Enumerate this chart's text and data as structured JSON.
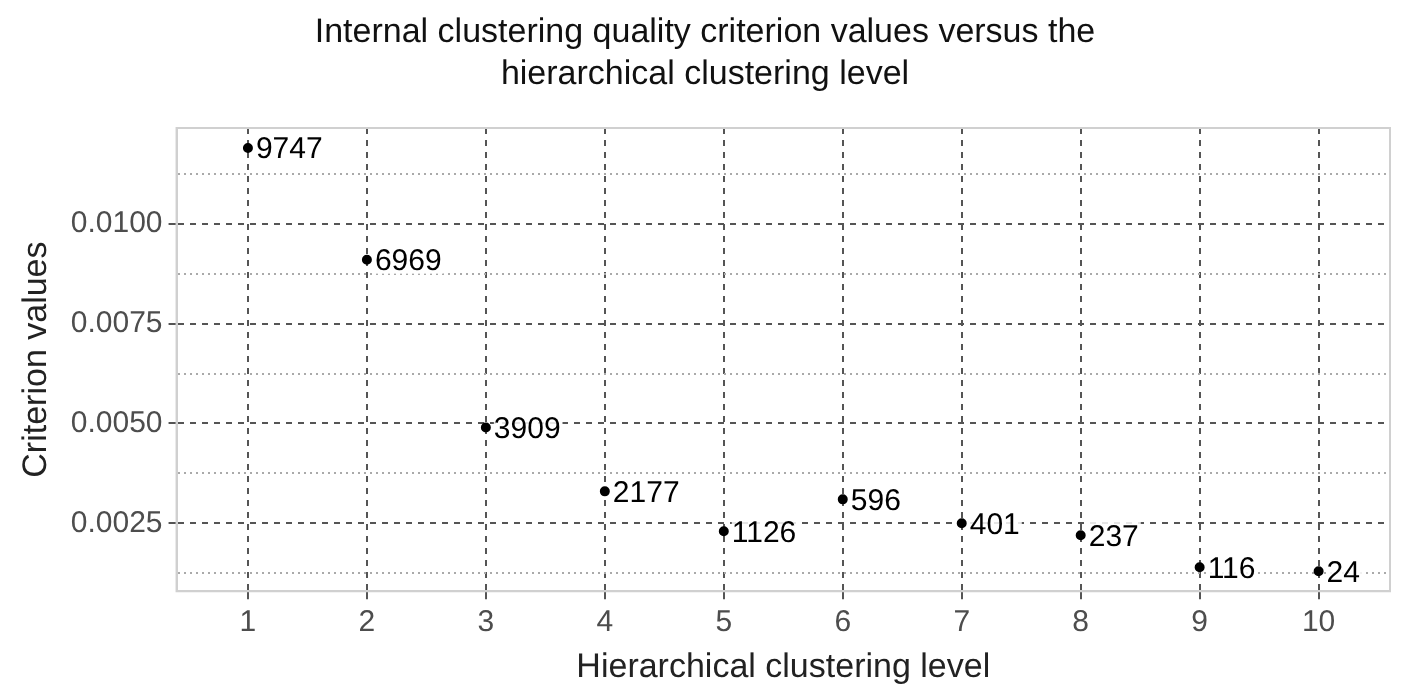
{
  "chart_data": {
    "type": "scatter",
    "title": "Internal clustering quality criterion values versus the hierarchical clustering level",
    "xlabel": "Hierarchical clustering level",
    "ylabel": "Criterion values",
    "x": [
      1,
      2,
      3,
      4,
      5,
      6,
      7,
      8,
      9,
      10
    ],
    "values": [
      0.0119,
      0.0091,
      0.0049,
      0.0033,
      0.0023,
      0.0031,
      0.0025,
      0.0022,
      0.0014,
      0.0013
    ],
    "annotations": [
      {
        "text": "9747",
        "x": 1,
        "y": 0.0119
      },
      {
        "text": "6969",
        "x": 2,
        "y": 0.0091
      },
      {
        "text": "3909",
        "x": 3,
        "y": 0.0049
      },
      {
        "text": "2177",
        "x": 4,
        "y": 0.0033
      },
      {
        "text": "1126",
        "x": 5,
        "y": 0.0023
      },
      {
        "text": "596",
        "x": 6,
        "y": 0.0031
      },
      {
        "text": "401",
        "x": 7,
        "y": 0.0025
      },
      {
        "text": "237",
        "x": 8,
        "y": 0.0022
      },
      {
        "text": "116",
        "x": 9,
        "y": 0.0014
      },
      {
        "text": "24",
        "x": 10,
        "y": 0.0013
      }
    ],
    "color": "#000000",
    "marker": "circle",
    "grid": true,
    "xlim": [
      0.4,
      10.6
    ],
    "xticks": [
      1,
      2,
      3,
      4,
      5,
      6,
      7,
      8,
      9,
      10
    ],
    "ylim": [
      0.0008,
      0.0124
    ],
    "yticks": [
      {
        "value": 0.00125,
        "label": null
      },
      {
        "value": 0.0025,
        "label": "0.0025"
      },
      {
        "value": 0.00375,
        "label": null
      },
      {
        "value": 0.005,
        "label": "0.0050"
      },
      {
        "value": 0.00625,
        "label": null
      },
      {
        "value": 0.0075,
        "label": "0.0075"
      },
      {
        "value": 0.00875,
        "label": null
      },
      {
        "value": 0.01,
        "label": "0.0100"
      },
      {
        "value": 0.01125,
        "label": null
      }
    ]
  }
}
